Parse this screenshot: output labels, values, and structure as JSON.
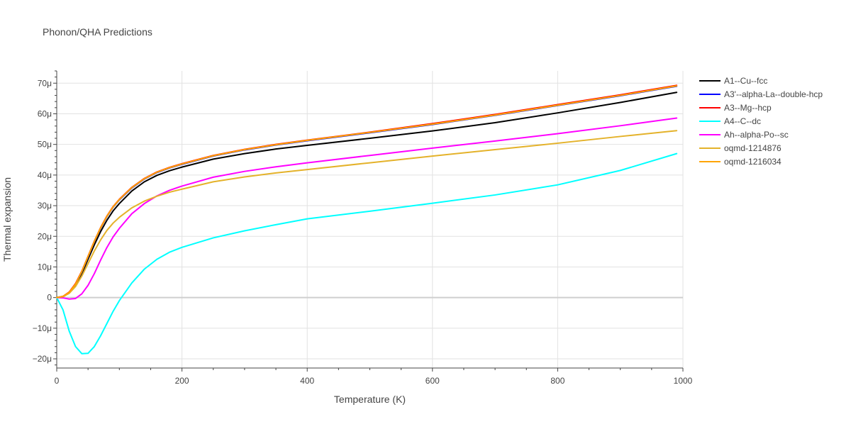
{
  "chart_data": {
    "type": "line",
    "title": "Phonon/QHA Predictions",
    "xlabel": "Temperature (K)",
    "ylabel": "Thermal expansion",
    "xlim": [
      0,
      1000
    ],
    "ylim": [
      -2.3e-05,
      7.4e-05
    ],
    "x_ticks": [
      0,
      200,
      400,
      600,
      800,
      1000
    ],
    "x_tick_labels": [
      "0",
      "200",
      "400",
      "600",
      "800",
      "1000"
    ],
    "y_ticks": [
      -2e-05,
      -1e-05,
      0,
      1e-05,
      2e-05,
      3e-05,
      4e-05,
      5e-05,
      6e-05,
      7e-05
    ],
    "y_tick_labels": [
      "−20μ",
      "−10μ",
      "0",
      "10μ",
      "20μ",
      "30μ",
      "40μ",
      "50μ",
      "60μ",
      "70μ"
    ],
    "grid": true,
    "legend_position": "right",
    "x": [
      0,
      10,
      20,
      30,
      40,
      50,
      60,
      70,
      80,
      90,
      100,
      120,
      140,
      160,
      180,
      200,
      250,
      300,
      350,
      400,
      500,
      600,
      700,
      800,
      900,
      990
    ],
    "series": [
      {
        "name": "A1--Cu--fcc",
        "color": "#000000",
        "values": [
          0,
          3e-07,
          1.5e-06,
          4e-06,
          7.8e-06,
          1.25e-05,
          1.72e-05,
          2.15e-05,
          2.52e-05,
          2.83e-05,
          3.07e-05,
          3.48e-05,
          3.78e-05,
          3.99e-05,
          4.14e-05,
          4.26e-05,
          4.52e-05,
          4.7e-05,
          4.85e-05,
          4.97e-05,
          5.2e-05,
          5.44e-05,
          5.71e-05,
          6.03e-05,
          6.37e-05,
          6.7e-05
        ]
      },
      {
        "name": "A3'--alpha-La--double-hcp",
        "color": "#0000ff",
        "values": [
          0,
          4e-07,
          1.7e-06,
          4.4e-06,
          8.4e-06,
          1.33e-05,
          1.82e-05,
          2.26e-05,
          2.64e-05,
          2.95e-05,
          3.19e-05,
          3.58e-05,
          3.87e-05,
          4.08e-05,
          4.23e-05,
          4.35e-05,
          4.62e-05,
          4.82e-05,
          4.98e-05,
          5.12e-05,
          5.38e-05,
          5.65e-05,
          5.95e-05,
          6.27e-05,
          6.59e-05,
          6.9e-05
        ]
      },
      {
        "name": "A3--Mg--hcp",
        "color": "#ff0000",
        "values": [
          0,
          4e-07,
          1.8e-06,
          4.6e-06,
          8.6e-06,
          1.35e-05,
          1.84e-05,
          2.28e-05,
          2.66e-05,
          2.97e-05,
          3.21e-05,
          3.6e-05,
          3.89e-05,
          4.1e-05,
          4.25e-05,
          4.37e-05,
          4.64e-05,
          4.84e-05,
          5e-05,
          5.14e-05,
          5.4e-05,
          5.68e-05,
          5.98e-05,
          6.3e-05,
          6.62e-05,
          6.93e-05
        ]
      },
      {
        "name": "A4--C--dc",
        "color": "#00ffff",
        "values": [
          0,
          -4e-06,
          -1.1e-05,
          -1.6e-05,
          -1.83e-05,
          -1.82e-05,
          -1.6e-05,
          -1.25e-05,
          -8.5e-06,
          -4.5e-06,
          -1e-06,
          4.8e-06,
          9.3e-06,
          1.25e-05,
          1.48e-05,
          1.64e-05,
          1.95e-05,
          2.18e-05,
          2.38e-05,
          2.57e-05,
          2.82e-05,
          3.08e-05,
          3.35e-05,
          3.68e-05,
          4.15e-05,
          4.7e-05
        ]
      },
      {
        "name": "Ah--alpha-Po--sc",
        "color": "#ff00ff",
        "values": [
          0,
          -1e-07,
          -5e-07,
          -3e-07,
          1.2e-06,
          4e-06,
          7.8e-06,
          1.22e-05,
          1.63e-05,
          1.98e-05,
          2.26e-05,
          2.74e-05,
          3.07e-05,
          3.32e-05,
          3.5e-05,
          3.64e-05,
          3.93e-05,
          4.12e-05,
          4.27e-05,
          4.4e-05,
          4.64e-05,
          4.88e-05,
          5.11e-05,
          5.35e-05,
          5.61e-05,
          5.86e-05
        ]
      },
      {
        "name": "oqmd-1214876",
        "color": "#e4b22a",
        "values": [
          0,
          3e-07,
          1.4e-06,
          3.6e-06,
          7e-06,
          1.11e-05,
          1.52e-05,
          1.88e-05,
          2.19e-05,
          2.43e-05,
          2.62e-05,
          2.93e-05,
          3.15e-05,
          3.31e-05,
          3.44e-05,
          3.54e-05,
          3.78e-05,
          3.94e-05,
          4.07e-05,
          4.18e-05,
          4.4e-05,
          4.62e-05,
          4.83e-05,
          5.04e-05,
          5.26e-05,
          5.45e-05
        ]
      },
      {
        "name": "oqmd-1216034",
        "color": "#ffa500",
        "values": [
          0,
          4e-07,
          1.7e-06,
          4.4e-06,
          8.5e-06,
          1.34e-05,
          1.83e-05,
          2.27e-05,
          2.65e-05,
          2.96e-05,
          3.2e-05,
          3.59e-05,
          3.88e-05,
          4.09e-05,
          4.24e-05,
          4.36e-05,
          4.63e-05,
          4.83e-05,
          4.99e-05,
          5.13e-05,
          5.39e-05,
          5.66e-05,
          5.96e-05,
          6.28e-05,
          6.6e-05,
          6.91e-05
        ]
      }
    ]
  }
}
